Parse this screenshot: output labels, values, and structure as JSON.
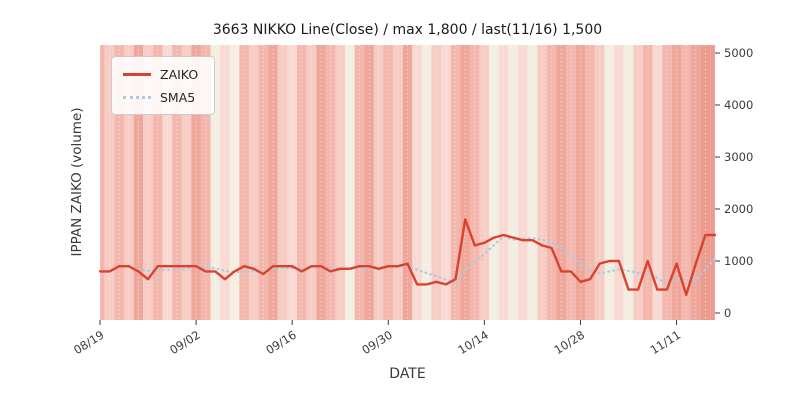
{
  "chart_data": {
    "type": "line",
    "title": "3663 NIKKO Line(Close) / max 1,800 / last(11/16) 1,500",
    "xlabel": "DATE",
    "ylabel": "IPPAN ZAIKO (volume)",
    "ylim": [
      0,
      5000
    ],
    "y_ticks": [
      0,
      1000,
      2000,
      3000,
      4000,
      5000
    ],
    "x_tick_labels": [
      "08/19",
      "09/02",
      "09/16",
      "09/30",
      "10/14",
      "10/28",
      "11/11"
    ],
    "x_tick_indices": [
      0,
      10,
      20,
      30,
      40,
      50,
      60
    ],
    "grid": "vertical white dashed lines per day",
    "legend": {
      "position": "upper-left",
      "entries": [
        {
          "label": "ZAIKO",
          "color": "#d9432e",
          "style": "solid"
        },
        {
          "label": "SMA5",
          "color": "#a9cce3",
          "style": "dotted"
        }
      ]
    },
    "series": [
      {
        "name": "ZAIKO",
        "values": [
          800,
          800,
          900,
          900,
          800,
          650,
          900,
          900,
          900,
          900,
          900,
          800,
          800,
          650,
          800,
          900,
          850,
          750,
          900,
          900,
          900,
          800,
          900,
          900,
          800,
          850,
          850,
          900,
          900,
          850,
          900,
          900,
          950,
          550,
          550,
          600,
          550,
          650,
          1800,
          1300,
          1350,
          1450,
          1500,
          1450,
          1400,
          1400,
          1300,
          1250,
          800,
          800,
          600,
          650,
          950,
          1000,
          1000,
          450,
          450,
          1000,
          450,
          450,
          950,
          350,
          950,
          1500,
          1500
        ]
      },
      {
        "name": "SMA5",
        "values": [
          null,
          null,
          null,
          null,
          840,
          810,
          830,
          830,
          830,
          850,
          900,
          880,
          860,
          810,
          790,
          790,
          800,
          790,
          840,
          860,
          860,
          850,
          880,
          880,
          860,
          850,
          860,
          860,
          860,
          870,
          880,
          890,
          900,
          830,
          770,
          710,
          640,
          580,
          830,
          980,
          1130,
          1310,
          1480,
          1410,
          1430,
          1440,
          1410,
          1360,
          1230,
          1110,
          950,
          820,
          760,
          800,
          840,
          810,
          770,
          780,
          670,
          560,
          660,
          640,
          630,
          840,
          1050
        ]
      }
    ],
    "background_bands": [
      "#f3b7ae",
      "#f7ccc5",
      "#f3b7ae",
      "#f7ccc5",
      "#efa79c",
      "#f7ccc5",
      "#f3b7ae",
      "#f9d9d3",
      "#f3b7ae",
      "#f7ccc5",
      "#efa79c",
      "#f3b7ae",
      "#f4eee2",
      "#f9d9d3",
      "#f4eee2",
      "#f3b7ae",
      "#f7ccc5",
      "#f3b7ae",
      "#efa79c",
      "#f7ccc5",
      "#f9d9d3",
      "#f3b7ae",
      "#f7ccc5",
      "#efa79c",
      "#f3b7ae",
      "#f7ccc5",
      "#f4eee2",
      "#f3b7ae",
      "#efa79c",
      "#f7ccc5",
      "#f3b7ae",
      "#f7ccc5",
      "#efa79c",
      "#f9d9d3",
      "#f4eee2",
      "#f7ccc5",
      "#f9d9d3",
      "#f3b7ae",
      "#efa79c",
      "#f3b7ae",
      "#f7ccc5",
      "#f4eee2",
      "#f9d9d3",
      "#f4eee2",
      "#f9d9d3",
      "#f4eee2",
      "#f7ccc5",
      "#f3b7ae",
      "#efa79c",
      "#f3b7ae",
      "#efa79c",
      "#f3b7ae",
      "#f7ccc5",
      "#f4eee2",
      "#f9d9d3",
      "#f4eee2",
      "#f7ccc5",
      "#f3b7ae",
      "#f9d9d3",
      "#f3b7ae",
      "#efa79c",
      "#f3b7ae",
      "#efa79c",
      "#ec9b8f",
      "#ec9b8f"
    ],
    "tick_color": "#3c3c3c"
  }
}
